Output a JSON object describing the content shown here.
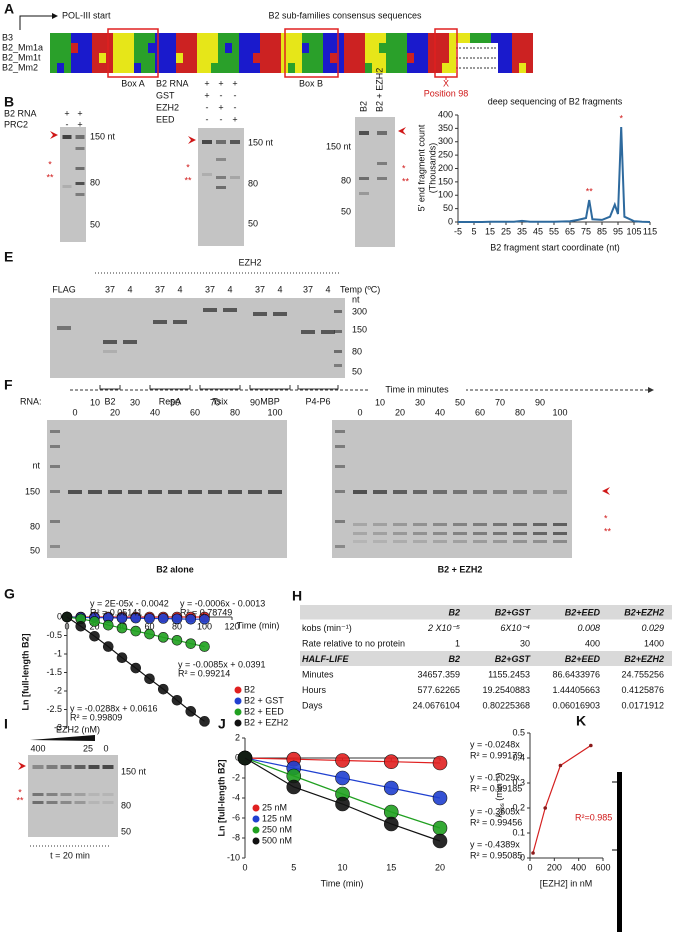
{
  "panels": {
    "A": {
      "label": "A",
      "pol_start": "POL-III start",
      "title": "B2 sub-families consensus sequences",
      "rows": [
        "B3",
        "B2_Mm1a",
        "B2_Mm1t",
        "B2_Mm2"
      ],
      "box_a": "Box A",
      "box_b": "Box B",
      "x_mark": "X",
      "position": "Position 98"
    },
    "B": {
      "label": "B",
      "rows": [
        "B2 RNA",
        "PRC2"
      ],
      "signs": [
        [
          "+",
          "+"
        ],
        [
          "-",
          "+"
        ]
      ],
      "markers": [
        "150 nt",
        "80",
        "50"
      ],
      "stars": [
        "*",
        "**"
      ]
    },
    "C": {
      "label": "C",
      "rows": [
        "B2 RNA",
        "GST",
        "EZH2",
        "EED"
      ],
      "signs": [
        [
          "+",
          "+",
          "+"
        ],
        [
          "+",
          "-",
          "-"
        ],
        [
          "-",
          "+",
          "-"
        ],
        [
          "-",
          "-",
          "+"
        ]
      ],
      "markers": [
        "150 nt",
        "80",
        "50"
      ],
      "stars": [
        "*",
        "**"
      ]
    },
    "D": {
      "label": "D",
      "lanes": [
        "B2",
        "B2 + EZH2"
      ],
      "markers": [
        "150 nt",
        "80",
        "50"
      ],
      "stars": [
        "*",
        "**"
      ]
    },
    "E": {
      "label": "E",
      "protein": "EZH2",
      "lanes": [
        "FLAG",
        "37",
        "4",
        "37",
        "4",
        "37",
        "4",
        "37",
        "4",
        "37",
        "4"
      ],
      "temp": "Temp (ºC)",
      "markers": [
        "nt",
        "300",
        "150",
        "80",
        "50"
      ],
      "rna_label": "RNA:",
      "groups": [
        "B2",
        "RepA",
        "Tsix",
        "MBP",
        "P4-P6"
      ]
    },
    "F": {
      "label": "F",
      "time_label": "Time in minutes",
      "times": [
        "0",
        "10",
        "20",
        "30",
        "40",
        "50",
        "60",
        "70",
        "80",
        "90",
        "100"
      ],
      "markers": [
        "nt",
        "150",
        "80",
        "50"
      ],
      "captions": [
        "B2 alone",
        "B2 + EZH2"
      ],
      "stars": [
        "*",
        "**"
      ]
    },
    "G": {
      "label": "G"
    },
    "H": {
      "label": "H",
      "rows": [
        [
          "",
          "B2",
          "B2+GST",
          "B2+EED",
          "B2+EZH2"
        ],
        [
          "kobs (min⁻¹)",
          "2 X10⁻⁵",
          "6X10⁻⁴",
          "0.008",
          "0.029"
        ],
        [
          "Rate relative to no protein",
          "1",
          "30",
          "400",
          "1400"
        ],
        [
          "HALF-LIFE",
          "B2",
          "B2+GST",
          "B2+EED",
          "B2+EZH2"
        ],
        [
          "Minutes",
          "34657.359",
          "1155.2453",
          "86.6433976",
          "24.755256"
        ],
        [
          "Hours",
          "577.62265",
          "19.2540883",
          "1.44405663",
          "0.4125876"
        ],
        [
          "Days",
          "24.0676104",
          "0.80225368",
          "0.06016903",
          "0.0171912"
        ]
      ]
    },
    "I": {
      "label": "I",
      "protein": "EZH2 (nM)",
      "lanes": [
        "400",
        "25",
        "0"
      ],
      "markers": [
        "150 nt",
        "80",
        "50"
      ],
      "stars": [
        "*",
        "**"
      ],
      "time": "t = 20 min"
    },
    "J": {
      "label": "J"
    },
    "K": {
      "label": "K"
    }
  },
  "chart_data": [
    {
      "type": "line",
      "title": "deep sequencing of B2 fragments",
      "y_label": [
        "5' end fragment count",
        "(Thousands)"
      ],
      "x_label": "B2 fragment start coordinate (nt)",
      "x": [
        -5,
        0,
        5,
        10,
        15,
        20,
        25,
        30,
        35,
        40,
        45,
        50,
        55,
        60,
        65,
        70,
        75,
        77,
        79,
        85,
        90,
        93,
        95,
        97,
        99,
        105,
        110,
        115
      ],
      "values": [
        0,
        0,
        0,
        0,
        1,
        1,
        1,
        1,
        4,
        1,
        1,
        1,
        1,
        2,
        3,
        8,
        15,
        82,
        10,
        8,
        20,
        65,
        30,
        355,
        20,
        3,
        1,
        0
      ],
      "color": "#2e6a9e",
      "annotations": [
        "**",
        "*"
      ],
      "xlim": [
        -5,
        115
      ],
      "xticks": [
        -5,
        5,
        15,
        25,
        35,
        45,
        55,
        65,
        75,
        85,
        95,
        105,
        115
      ],
      "ylim": [
        0,
        400
      ],
      "yticks": [
        0,
        50,
        100,
        150,
        200,
        250,
        300,
        350,
        400
      ]
    },
    {
      "type": "line",
      "markers": true,
      "y_label": "Ln [full-length B2]",
      "x_label": "Time (min)",
      "x": [
        0,
        10,
        20,
        30,
        40,
        50,
        60,
        70,
        80,
        90,
        100
      ],
      "series": [
        {
          "name": "B2",
          "color": "#e02020",
          "values": [
            0,
            0,
            0,
            0,
            0,
            0,
            0,
            0,
            0,
            0,
            0
          ]
        },
        {
          "name": "B2 + GST",
          "color": "#2040d0",
          "values": [
            0,
            -0.01,
            -0.02,
            -0.02,
            -0.03,
            -0.03,
            -0.04,
            -0.04,
            -0.05,
            -0.06,
            -0.06
          ]
        },
        {
          "name": "B2 + EED",
          "color": "#20a020",
          "values": [
            0,
            -0.05,
            -0.12,
            -0.22,
            -0.3,
            -0.38,
            -0.46,
            -0.55,
            -0.63,
            -0.72,
            -0.8
          ]
        },
        {
          "name": "B2 + EZH2",
          "color": "#111111",
          "values": [
            0,
            -0.25,
            -0.52,
            -0.8,
            -1.1,
            -1.38,
            -1.67,
            -1.95,
            -2.25,
            -2.55,
            -2.82
          ]
        }
      ],
      "annotations": [
        {
          "text": "y = 2E-05x - 0.0042",
          "color": "#e02020"
        },
        {
          "text": "R² = 0.05141",
          "color": "#e02020"
        },
        {
          "text": "y = -0.0006x - 0.0013",
          "color": "#2a2a9a"
        },
        {
          "text": "R² = 0.78749",
          "color": "#2a2a9a"
        },
        {
          "text": "y = -0.0085x + 0.0391",
          "color": "#20a020"
        },
        {
          "text": "R² = 0.99214",
          "color": "#20a020"
        },
        {
          "text": "y = -0.0288x + 0.0616",
          "color": "#111111"
        },
        {
          "text": "R² = 0.99809",
          "color": "#111111"
        }
      ],
      "xlim": [
        0,
        120
      ],
      "xticks": [
        0,
        20,
        40,
        60,
        80,
        100,
        120
      ],
      "ylim": [
        -3,
        0
      ],
      "yticks": [
        0,
        -0.5,
        -1,
        -1.5,
        -2,
        -2.5,
        -3
      ]
    },
    {
      "type": "line",
      "markers": true,
      "y_label": "Ln [full-length B2]",
      "x_label": "Time (min)",
      "x": [
        0,
        5,
        10,
        15,
        20
      ],
      "series": [
        {
          "name": "25 nM",
          "color": "#e02020",
          "values": [
            0,
            -0.12,
            -0.25,
            -0.37,
            -0.5
          ]
        },
        {
          "name": "125 nM",
          "color": "#2040d0",
          "values": [
            0,
            -1,
            -2,
            -3,
            -4
          ]
        },
        {
          "name": "250 nM",
          "color": "#20a020",
          "values": [
            0,
            -1.8,
            -3.6,
            -5.4,
            -7
          ]
        },
        {
          "name": "500 nM",
          "color": "#111111",
          "values": [
            0,
            -2.9,
            -4.6,
            -6.6,
            -8.3
          ]
        }
      ],
      "annotations": [
        {
          "text": "y = -0.0248x",
          "color": "#e02020"
        },
        {
          "text": "R² = 0.99179",
          "color": "#e02020"
        },
        {
          "text": "y = -0.2029x",
          "color": "#2040d0"
        },
        {
          "text": "R² = 0.99185",
          "color": "#2040d0"
        },
        {
          "text": "y = -0.3605x",
          "color": "#20a020"
        },
        {
          "text": "R² = 0.99456",
          "color": "#20a020"
        },
        {
          "text": "y = -0.4389x",
          "color": "#111111"
        },
        {
          "text": "R² = 0.95085",
          "color": "#111111"
        }
      ],
      "xlim": [
        0,
        20
      ],
      "xticks": [
        0,
        5,
        10,
        15,
        20
      ],
      "ylim": [
        -10,
        2
      ],
      "yticks": [
        2,
        0,
        -2,
        -4,
        -6,
        -8,
        -10
      ]
    },
    {
      "type": "scatter",
      "y_label": [
        "k",
        "obs",
        " (min⁻¹)"
      ],
      "x_label": "[EZH2] in nM",
      "x": [
        25,
        125,
        250,
        500
      ],
      "values": [
        0.02,
        0.2,
        0.37,
        0.45
      ],
      "color": "#8b1a1a",
      "line_color": "#d42020",
      "annotations": [
        "R²=0.985"
      ],
      "xlim": [
        0,
        600
      ],
      "xticks": [
        0,
        200,
        400,
        600
      ],
      "ylim": [
        0,
        0.5
      ],
      "yticks": [
        0,
        0.1,
        0.2,
        0.3,
        0.4,
        0.5
      ]
    }
  ]
}
